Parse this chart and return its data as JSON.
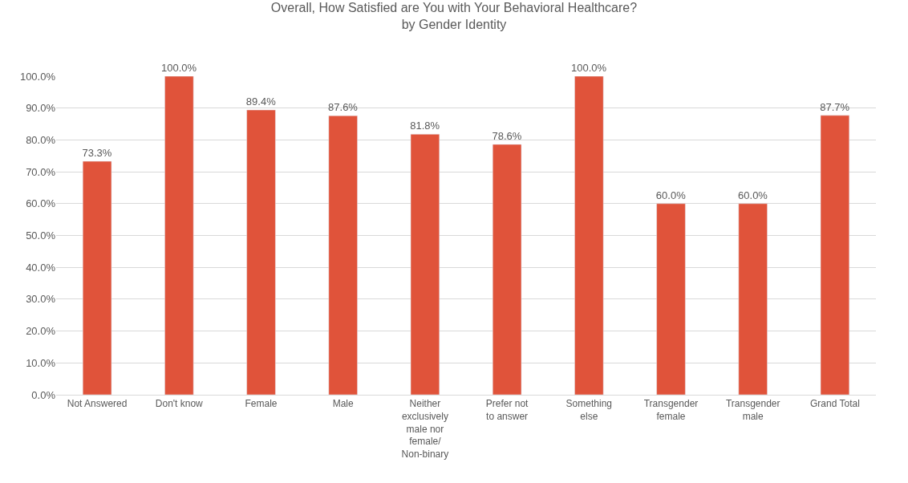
{
  "chart_data": {
    "type": "bar",
    "title": "Overall, How Satisfied are You with Your Behavioral Healthcare?",
    "subtitle": "by Gender Identity",
    "categories": [
      "Not Answered",
      "Don't know",
      "Female",
      "Male",
      "Neither exclusively male nor female/ Non-binary",
      "Prefer not to answer",
      "Something else",
      "Transgender female",
      "Transgender male",
      "Grand Total"
    ],
    "values": [
      73.3,
      100.0,
      89.4,
      87.6,
      81.8,
      78.6,
      100.0,
      60.0,
      60.0,
      87.7
    ],
    "value_labels": [
      "73.3%",
      "100.0%",
      "89.4%",
      "87.6%",
      "81.8%",
      "78.6%",
      "100.0%",
      "60.0%",
      "60.0%",
      "87.7%"
    ],
    "color": "#e0533a",
    "ylim": [
      0,
      100
    ],
    "yticks": [
      {
        "value": 0,
        "label": "0.0%"
      },
      {
        "value": 10,
        "label": "10.0%"
      },
      {
        "value": 20,
        "label": "20.0%"
      },
      {
        "value": 30,
        "label": "30.0%"
      },
      {
        "value": 40,
        "label": "40.0%"
      },
      {
        "value": 50,
        "label": "50.0%"
      },
      {
        "value": 60,
        "label": "60.0%"
      },
      {
        "value": 70,
        "label": "70.0%"
      },
      {
        "value": 80,
        "label": "80.0%"
      },
      {
        "value": 90,
        "label": "90.0%"
      },
      {
        "value": 100,
        "label": "100.0%"
      }
    ],
    "grid": "y"
  }
}
